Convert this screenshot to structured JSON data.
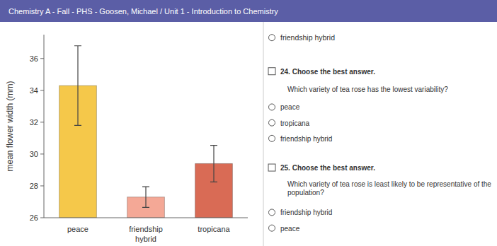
{
  "chart_data": {
    "type": "bar",
    "title": "Chemistry A - Fall - PHS - Goosen, Michael / Unit 1 - Introduction to Chemistry",
    "ylabel": "mean flower width (mm)",
    "categories": [
      "peace",
      "friendship\nhybrid",
      "tropicana"
    ],
    "values": [
      34.3,
      27.3,
      29.4
    ],
    "errors": [
      2.5,
      0.65,
      1.15
    ],
    "colors": [
      "#F5C84A",
      "#F4A896",
      "#D96B55"
    ],
    "ylim": [
      26,
      37.5
    ],
    "yticks": [
      26,
      28,
      30,
      32,
      34,
      36
    ],
    "annotations": [
      "friendship hybrid",
      "24.  Choose the best answer.",
      "Which variety of tea rose has the lowest variability?",
      "peace",
      "tropicana",
      "friendship hybrid",
      "25.  Choose the best answer.",
      "Which variety of tea rose is least likely to be representative of the\npopulation?",
      "friendship hybrid",
      "peace"
    ]
  }
}
